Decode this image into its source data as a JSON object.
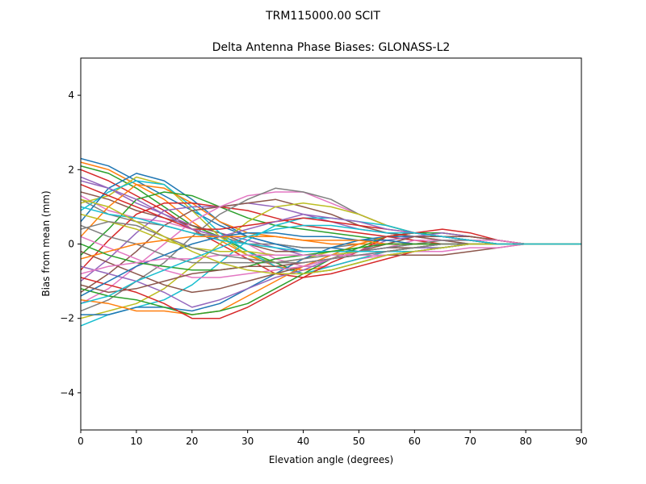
{
  "chart_data": {
    "type": "line",
    "suptitle": "TRM115000.00    SCIT",
    "title": "Delta Antenna Phase Biases: GLONASS-L2",
    "xlabel": "Elevation angle (degrees)",
    "ylabel": "Bias from mean (mm)",
    "xlim": [
      0,
      90
    ],
    "ylim": [
      -5,
      5
    ],
    "xticks": [
      "0",
      "10",
      "20",
      "30",
      "40",
      "50",
      "60",
      "70",
      "80",
      "90"
    ],
    "yticks": [
      "−4",
      "−2",
      "0",
      "2",
      "4"
    ],
    "grid": false,
    "x": [
      0,
      5,
      10,
      15,
      20,
      25,
      30,
      35,
      40,
      45,
      50,
      55,
      60,
      65,
      70,
      75,
      80,
      85,
      90
    ],
    "palette": [
      "#1f77b4",
      "#ff7f0e",
      "#2ca02c",
      "#d62728",
      "#9467bd",
      "#8c564b",
      "#e377c2",
      "#7f7f7f",
      "#bcbd22",
      "#17becf"
    ],
    "series": [
      {
        "values": [
          2.3,
          2.1,
          1.7,
          1.3,
          0.9,
          0.5,
          0.2,
          0.0,
          -0.1,
          -0.1,
          -0.2,
          -0.2,
          -0.1,
          -0.1,
          0.0,
          0.0,
          0.0,
          0.0,
          0.0
        ]
      },
      {
        "values": [
          2.2,
          2.0,
          1.6,
          1.2,
          0.6,
          0.1,
          -0.3,
          -0.6,
          -0.7,
          -0.6,
          -0.4,
          -0.2,
          -0.1,
          0.0,
          0.0,
          0.0,
          0.0,
          0.0,
          0.0
        ]
      },
      {
        "values": [
          2.1,
          1.9,
          1.5,
          1.0,
          0.5,
          0.2,
          -0.2,
          -0.5,
          -0.8,
          -0.7,
          -0.5,
          -0.3,
          -0.2,
          -0.1,
          0.0,
          0.0,
          0.0,
          0.0,
          0.0
        ]
      },
      {
        "values": [
          2.0,
          1.7,
          1.3,
          0.9,
          0.4,
          0.0,
          -0.4,
          -0.8,
          -0.9,
          -0.8,
          -0.6,
          -0.4,
          -0.2,
          -0.1,
          0.0,
          0.0,
          0.0,
          0.0,
          0.0
        ]
      },
      {
        "values": [
          1.7,
          1.5,
          1.1,
          0.8,
          0.5,
          0.3,
          0.1,
          -0.1,
          -0.3,
          -0.3,
          -0.3,
          -0.2,
          -0.1,
          -0.1,
          0.0,
          0.0,
          0.0,
          0.0,
          0.0
        ]
      },
      {
        "values": [
          1.4,
          1.2,
          0.9,
          0.7,
          0.5,
          0.3,
          0.0,
          -0.2,
          -0.2,
          -0.2,
          -0.2,
          -0.1,
          -0.1,
          0.0,
          0.0,
          0.0,
          0.0,
          0.0,
          0.0
        ]
      },
      {
        "values": [
          1.3,
          0.9,
          0.7,
          0.6,
          0.4,
          0.2,
          0.0,
          -0.4,
          -0.6,
          -0.6,
          -0.4,
          -0.3,
          -0.2,
          -0.1,
          0.0,
          0.0,
          0.0,
          0.0,
          0.0
        ]
      },
      {
        "values": [
          1.2,
          0.8,
          0.6,
          0.5,
          0.3,
          0.2,
          0.0,
          0.0,
          -0.1,
          -0.1,
          0.0,
          0.0,
          0.0,
          0.0,
          0.0,
          0.0,
          0.0,
          0.0,
          0.0
        ]
      },
      {
        "values": [
          1.1,
          1.3,
          1.8,
          1.6,
          0.9,
          0.2,
          -0.3,
          -0.5,
          -0.4,
          -0.2,
          -0.1,
          0.0,
          0.0,
          0.0,
          0.0,
          0.0,
          0.0,
          0.0,
          0.0
        ]
      },
      {
        "values": [
          0.9,
          1.4,
          1.7,
          1.6,
          1.0,
          0.3,
          -0.2,
          -0.6,
          -0.8,
          -0.6,
          -0.4,
          -0.2,
          -0.1,
          0.0,
          0.0,
          0.0,
          0.0,
          0.0,
          0.0
        ]
      },
      {
        "values": [
          0.6,
          1.5,
          1.9,
          1.7,
          1.2,
          0.6,
          0.2,
          0.0,
          -0.2,
          -0.2,
          -0.2,
          -0.1,
          0.0,
          0.0,
          0.0,
          0.0,
          0.0,
          0.0,
          0.0
        ]
      },
      {
        "values": [
          0.2,
          1.0,
          1.6,
          1.5,
          1.1,
          0.6,
          0.3,
          0.2,
          0.1,
          0.0,
          0.0,
          0.0,
          0.0,
          0.0,
          0.0,
          0.0,
          0.0,
          0.0,
          0.0
        ]
      },
      {
        "values": [
          -0.3,
          0.4,
          1.2,
          1.4,
          1.3,
          1.0,
          0.7,
          0.5,
          0.4,
          0.3,
          0.2,
          0.1,
          0.0,
          0.0,
          0.0,
          0.0,
          0.0,
          0.0,
          0.0
        ]
      },
      {
        "values": [
          -0.7,
          0.1,
          0.8,
          1.1,
          1.1,
          1.0,
          0.9,
          0.7,
          0.5,
          0.4,
          0.3,
          0.2,
          0.1,
          0.0,
          0.0,
          0.0,
          0.0,
          0.0,
          0.0
        ]
      },
      {
        "values": [
          -1.0,
          -0.4,
          0.3,
          0.9,
          1.0,
          1.0,
          1.1,
          1.0,
          0.8,
          0.6,
          0.4,
          0.3,
          0.2,
          0.1,
          0.0,
          0.0,
          0.0,
          0.0,
          0.0
        ]
      },
      {
        "values": [
          -1.3,
          -0.8,
          -0.2,
          0.5,
          0.9,
          1.0,
          1.1,
          1.2,
          1.0,
          0.8,
          0.5,
          0.3,
          0.2,
          0.1,
          0.0,
          0.0,
          0.0,
          0.0,
          0.0
        ]
      },
      {
        "values": [
          -1.6,
          -1.2,
          -0.6,
          0.0,
          0.6,
          1.0,
          1.3,
          1.4,
          1.4,
          1.1,
          0.8,
          0.5,
          0.3,
          0.2,
          0.1,
          0.0,
          0.0,
          0.0,
          0.0
        ]
      },
      {
        "values": [
          -1.8,
          -1.5,
          -1.0,
          -0.5,
          0.2,
          0.8,
          1.2,
          1.5,
          1.4,
          1.2,
          0.8,
          0.5,
          0.3,
          0.2,
          0.1,
          0.0,
          0.0,
          0.0,
          0.0
        ]
      },
      {
        "values": [
          -2.0,
          -1.8,
          -1.6,
          -1.2,
          -0.6,
          0.0,
          0.6,
          1.0,
          1.1,
          1.0,
          0.8,
          0.5,
          0.3,
          0.2,
          0.1,
          0.0,
          0.0,
          0.0,
          0.0
        ]
      },
      {
        "values": [
          -2.2,
          -1.9,
          -1.7,
          -1.5,
          -1.1,
          -0.5,
          0.1,
          0.5,
          0.7,
          0.7,
          0.6,
          0.5,
          0.3,
          0.2,
          0.1,
          0.0,
          0.0,
          0.0,
          0.0
        ]
      },
      {
        "values": [
          -1.9,
          -1.9,
          -1.7,
          -1.7,
          -1.8,
          -1.6,
          -1.2,
          -0.8,
          -0.4,
          -0.1,
          0.1,
          0.2,
          0.2,
          0.2,
          0.1,
          0.0,
          0.0,
          0.0,
          0.0
        ]
      },
      {
        "values": [
          -1.5,
          -1.6,
          -1.8,
          -1.8,
          -1.9,
          -1.8,
          -1.4,
          -1.0,
          -0.6,
          -0.3,
          0.0,
          0.2,
          0.3,
          0.3,
          0.2,
          0.1,
          0.0,
          0.0,
          0.0
        ]
      },
      {
        "values": [
          -1.2,
          -1.4,
          -1.5,
          -1.7,
          -1.9,
          -1.8,
          -1.6,
          -1.2,
          -0.8,
          -0.4,
          -0.1,
          0.2,
          0.3,
          0.3,
          0.2,
          0.1,
          0.0,
          0.0,
          0.0
        ]
      },
      {
        "values": [
          -0.9,
          -1.1,
          -1.3,
          -1.6,
          -2.0,
          -2.0,
          -1.7,
          -1.3,
          -0.9,
          -0.5,
          -0.2,
          0.2,
          0.3,
          0.4,
          0.3,
          0.1,
          0.0,
          0.0,
          0.0
        ]
      },
      {
        "values": [
          -0.6,
          -0.8,
          -1.0,
          -1.3,
          -1.7,
          -1.5,
          -1.2,
          -0.9,
          -0.7,
          -0.4,
          -0.2,
          0.1,
          0.2,
          0.3,
          0.2,
          0.1,
          0.0,
          0.0,
          0.0
        ]
      },
      {
        "values": [
          -0.2,
          -0.5,
          -0.8,
          -1.1,
          -1.3,
          -1.2,
          -1.0,
          -0.8,
          -0.6,
          -0.4,
          -0.2,
          0.0,
          0.2,
          0.2,
          0.2,
          0.1,
          0.0,
          0.0,
          0.0
        ]
      },
      {
        "values": [
          0.2,
          -0.1,
          -0.4,
          -0.7,
          -0.9,
          -0.9,
          -0.8,
          -0.7,
          -0.6,
          -0.4,
          -0.2,
          -0.1,
          0.1,
          0.1,
          0.1,
          0.1,
          0.0,
          0.0,
          0.0
        ]
      },
      {
        "values": [
          0.5,
          0.2,
          0.0,
          -0.3,
          -0.5,
          -0.5,
          -0.5,
          -0.5,
          -0.4,
          -0.3,
          -0.2,
          -0.1,
          0.0,
          0.1,
          0.1,
          0.0,
          0.0,
          0.0,
          0.0
        ]
      },
      {
        "values": [
          0.8,
          0.6,
          0.4,
          0.1,
          -0.1,
          -0.2,
          -0.2,
          -0.3,
          -0.3,
          -0.3,
          -0.2,
          -0.2,
          -0.1,
          0.0,
          0.0,
          0.0,
          0.0,
          0.0,
          0.0
        ]
      },
      {
        "values": [
          1.0,
          0.8,
          0.7,
          0.5,
          0.3,
          0.1,
          0.0,
          -0.1,
          -0.2,
          -0.2,
          -0.2,
          -0.2,
          -0.2,
          -0.1,
          0.0,
          0.0,
          0.0,
          0.0,
          0.0
        ]
      },
      {
        "values": [
          -1.4,
          -1.0,
          -0.6,
          -0.3,
          0.0,
          0.2,
          0.3,
          0.3,
          0.2,
          0.2,
          0.1,
          0.1,
          0.0,
          0.0,
          0.0,
          0.0,
          0.0,
          0.0,
          0.0
        ]
      },
      {
        "values": [
          -0.4,
          -0.2,
          0.0,
          0.1,
          0.2,
          0.2,
          0.2,
          0.2,
          0.1,
          0.1,
          0.1,
          0.0,
          0.0,
          0.0,
          0.0,
          0.0,
          0.0,
          0.0,
          0.0
        ]
      },
      {
        "values": [
          0.0,
          -0.3,
          -0.5,
          -0.6,
          -0.7,
          -0.7,
          -0.6,
          -0.4,
          -0.3,
          -0.2,
          -0.1,
          0.0,
          0.0,
          0.0,
          0.0,
          0.0,
          0.0,
          0.0,
          0.0
        ]
      },
      {
        "values": [
          1.6,
          1.3,
          1.0,
          0.7,
          0.4,
          0.4,
          0.5,
          0.6,
          0.7,
          0.6,
          0.5,
          0.4,
          0.3,
          0.2,
          0.1,
          0.0,
          0.0,
          0.0,
          0.0
        ]
      },
      {
        "values": [
          1.8,
          1.5,
          1.2,
          0.8,
          0.4,
          0.2,
          0.4,
          0.6,
          0.8,
          0.7,
          0.6,
          0.4,
          0.3,
          0.2,
          0.1,
          0.0,
          0.0,
          0.0,
          0.0
        ]
      },
      {
        "values": [
          -1.1,
          -1.3,
          -1.2,
          -1.0,
          -0.8,
          -0.7,
          -0.6,
          -0.6,
          -0.5,
          -0.4,
          -0.3,
          -0.3,
          -0.3,
          -0.3,
          -0.2,
          -0.1,
          0.0,
          0.0,
          0.0
        ]
      },
      {
        "values": [
          -0.8,
          -0.6,
          -0.5,
          -0.4,
          -0.4,
          -0.3,
          -0.3,
          -0.3,
          -0.3,
          -0.3,
          -0.3,
          -0.3,
          -0.2,
          -0.2,
          -0.1,
          -0.1,
          0.0,
          0.0,
          0.0
        ]
      },
      {
        "values": [
          0.4,
          0.6,
          0.5,
          0.2,
          -0.1,
          -0.3,
          -0.4,
          -0.5,
          -0.5,
          -0.4,
          -0.3,
          -0.2,
          -0.1,
          0.0,
          0.0,
          0.0,
          0.0,
          0.0,
          0.0
        ]
      },
      {
        "values": [
          1.2,
          1.0,
          0.6,
          0.2,
          -0.2,
          -0.5,
          -0.7,
          -0.8,
          -0.8,
          -0.7,
          -0.5,
          -0.3,
          -0.2,
          -0.1,
          0.0,
          0.0,
          0.0,
          0.0,
          0.0
        ]
      },
      {
        "values": [
          -1.6,
          -1.4,
          -1.0,
          -0.7,
          -0.4,
          -0.1,
          0.2,
          0.4,
          0.5,
          0.5,
          0.4,
          0.3,
          0.3,
          0.2,
          0.1,
          0.0,
          0.0,
          0.0,
          0.0
        ]
      }
    ]
  }
}
